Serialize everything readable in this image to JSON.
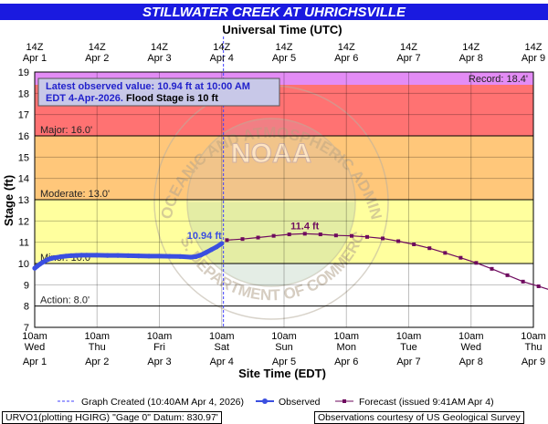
{
  "title": "STILLWATER CREEK AT UHRICHSVILLE",
  "top_axis_title": "Universal Time (UTC)",
  "bottom_axis_title": "Site Time (EDT)",
  "y_axis_title": "Stage (ft)",
  "info_box": {
    "line1": "Latest observed value: 10.94 ft at 10:00 AM",
    "line2_prefix": "EDT 4-Apr-2026.",
    "line2_suffix": " Flood Stage is 10 ft"
  },
  "watermark": {
    "ring_top": "NATIONAL OCEANIC AND ATMOSPHERIC ADMINISTRATION",
    "ring_bottom": "U.S. DEPARTMENT OF COMMERCE",
    "center": "NOAA"
  },
  "legend": {
    "created": "Graph Created (10:40AM Apr 4, 2026)",
    "observed": "Observed",
    "forecast": "Forecast (issued 9:41AM Apr 4)"
  },
  "footer": {
    "left": "URVO1(plotting HGIRG) \"Gage 0\" Datum: 830.97'",
    "right": "Observations courtesy of US Geological Survey"
  },
  "colors": {
    "title_bar": "#1a1ae0",
    "record": "#e38cf5",
    "major": "#ff7272",
    "moderate": "#ffc77a",
    "minor": "#ffff9e",
    "below": "#ffffff",
    "observed": "#3b4fe0",
    "forecast": "#6e0a5e",
    "created_line": "#4040ff",
    "grid": "#000000"
  },
  "chart_data": {
    "type": "line",
    "y_range": [
      7,
      19
    ],
    "y_ticks": [
      7,
      8,
      9,
      10,
      11,
      12,
      13,
      14,
      15,
      16,
      17,
      18,
      19
    ],
    "x_range_hours": [
      0,
      192
    ],
    "x_hours_note": "hours after 10am EDT Wed Apr 1 2026",
    "bottom_ticks": [
      {
        "top": "10am",
        "mid": "Wed",
        "bot": "Apr 1"
      },
      {
        "top": "10am",
        "mid": "Thu",
        "bot": "Apr 2"
      },
      {
        "top": "10am",
        "mid": "Fri",
        "bot": "Apr 3"
      },
      {
        "top": "10am",
        "mid": "Sat",
        "bot": "Apr 4"
      },
      {
        "top": "10am",
        "mid": "Sun",
        "bot": "Apr 5"
      },
      {
        "top": "10am",
        "mid": "Mon",
        "bot": "Apr 6"
      },
      {
        "top": "10am",
        "mid": "Tue",
        "bot": "Apr 7"
      },
      {
        "top": "10am",
        "mid": "Wed",
        "bot": "Apr 8"
      },
      {
        "top": "10am",
        "mid": "Thu",
        "bot": "Apr 9"
      }
    ],
    "top_ticks": [
      {
        "top": "14Z",
        "bot": "Apr 1"
      },
      {
        "top": "14Z",
        "bot": "Apr 2"
      },
      {
        "top": "14Z",
        "bot": "Apr 3"
      },
      {
        "top": "14Z",
        "bot": "Apr 4"
      },
      {
        "top": "14Z",
        "bot": "Apr 5"
      },
      {
        "top": "14Z",
        "bot": "Apr 6"
      },
      {
        "top": "14Z",
        "bot": "Apr 7"
      },
      {
        "top": "14Z",
        "bot": "Apr 8"
      },
      {
        "top": "14Z",
        "bot": "Apr 9"
      }
    ],
    "flood_categories": [
      {
        "name": "record",
        "from": 18.4,
        "to": 19,
        "label": "Record: 18.4'"
      },
      {
        "name": "major",
        "from": 16,
        "to": 18.4,
        "label": "Major: 16.0'"
      },
      {
        "name": "moderate",
        "from": 13,
        "to": 16,
        "label": "Moderate: 13.0'"
      },
      {
        "name": "minor",
        "from": 10,
        "to": 13,
        "label": "Minor: 10.0'"
      },
      {
        "name": "action",
        "from": 8,
        "to": 10,
        "label": "Action: 8.0'"
      }
    ],
    "created_hour": 72.67,
    "series": [
      {
        "name": "Observed",
        "peak_label": "10.94 ft",
        "points": [
          [
            0,
            9.78
          ],
          [
            1,
            9.88
          ],
          [
            2,
            9.97
          ],
          [
            3,
            10.05
          ],
          [
            4,
            10.12
          ],
          [
            5,
            10.18
          ],
          [
            6,
            10.23
          ],
          [
            8,
            10.28
          ],
          [
            10,
            10.32
          ],
          [
            12,
            10.35
          ],
          [
            14,
            10.37
          ],
          [
            16,
            10.38
          ],
          [
            18,
            10.39
          ],
          [
            20,
            10.39
          ],
          [
            24,
            10.39
          ],
          [
            28,
            10.38
          ],
          [
            32,
            10.38
          ],
          [
            36,
            10.37
          ],
          [
            40,
            10.36
          ],
          [
            44,
            10.35
          ],
          [
            48,
            10.35
          ],
          [
            52,
            10.34
          ],
          [
            56,
            10.33
          ],
          [
            60,
            10.3
          ],
          [
            62,
            10.32
          ],
          [
            64,
            10.4
          ],
          [
            66,
            10.52
          ],
          [
            68,
            10.65
          ],
          [
            70,
            10.78
          ],
          [
            72,
            10.94
          ]
        ]
      },
      {
        "name": "Forecast",
        "peak_label": "11.4 ft",
        "points": [
          [
            74,
            11.1
          ],
          [
            80,
            11.15
          ],
          [
            86,
            11.22
          ],
          [
            92,
            11.3
          ],
          [
            98,
            11.37
          ],
          [
            104,
            11.4
          ],
          [
            110,
            11.37
          ],
          [
            116,
            11.32
          ],
          [
            122,
            11.3
          ],
          [
            128,
            11.25
          ],
          [
            134,
            11.18
          ],
          [
            140,
            11.05
          ],
          [
            146,
            10.9
          ],
          [
            152,
            10.72
          ],
          [
            158,
            10.5
          ],
          [
            164,
            10.27
          ],
          [
            170,
            10.03
          ],
          [
            176,
            9.75
          ],
          [
            182,
            9.45
          ],
          [
            188,
            9.15
          ],
          [
            194,
            8.93
          ],
          [
            200,
            8.7
          ]
        ]
      }
    ]
  }
}
